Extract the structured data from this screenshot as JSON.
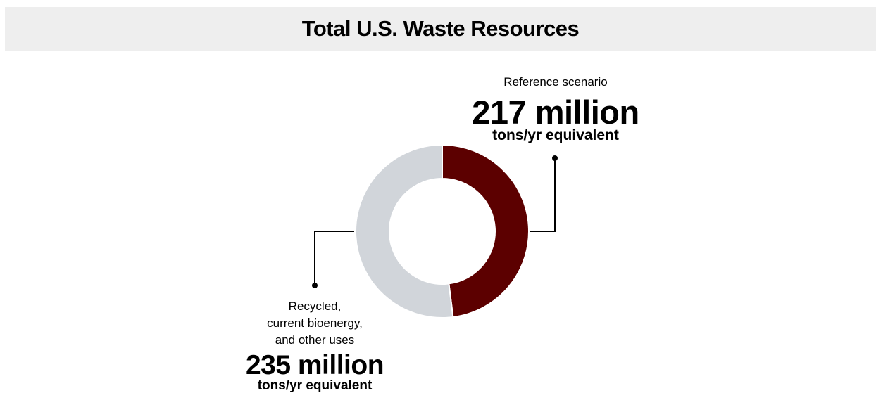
{
  "chart_data": {
    "type": "donut",
    "title": "Total U.S. Waste Resources",
    "categories": [
      "Reference scenario",
      "Recycled,\ncurrent bioenergy,\nand other uses"
    ],
    "values": [
      217,
      235
    ],
    "value_labels": [
      "217 million",
      "235 million"
    ],
    "unit_label": "tons/yr equivalent",
    "colors": [
      "#5c0000",
      "#d1d5da"
    ]
  }
}
